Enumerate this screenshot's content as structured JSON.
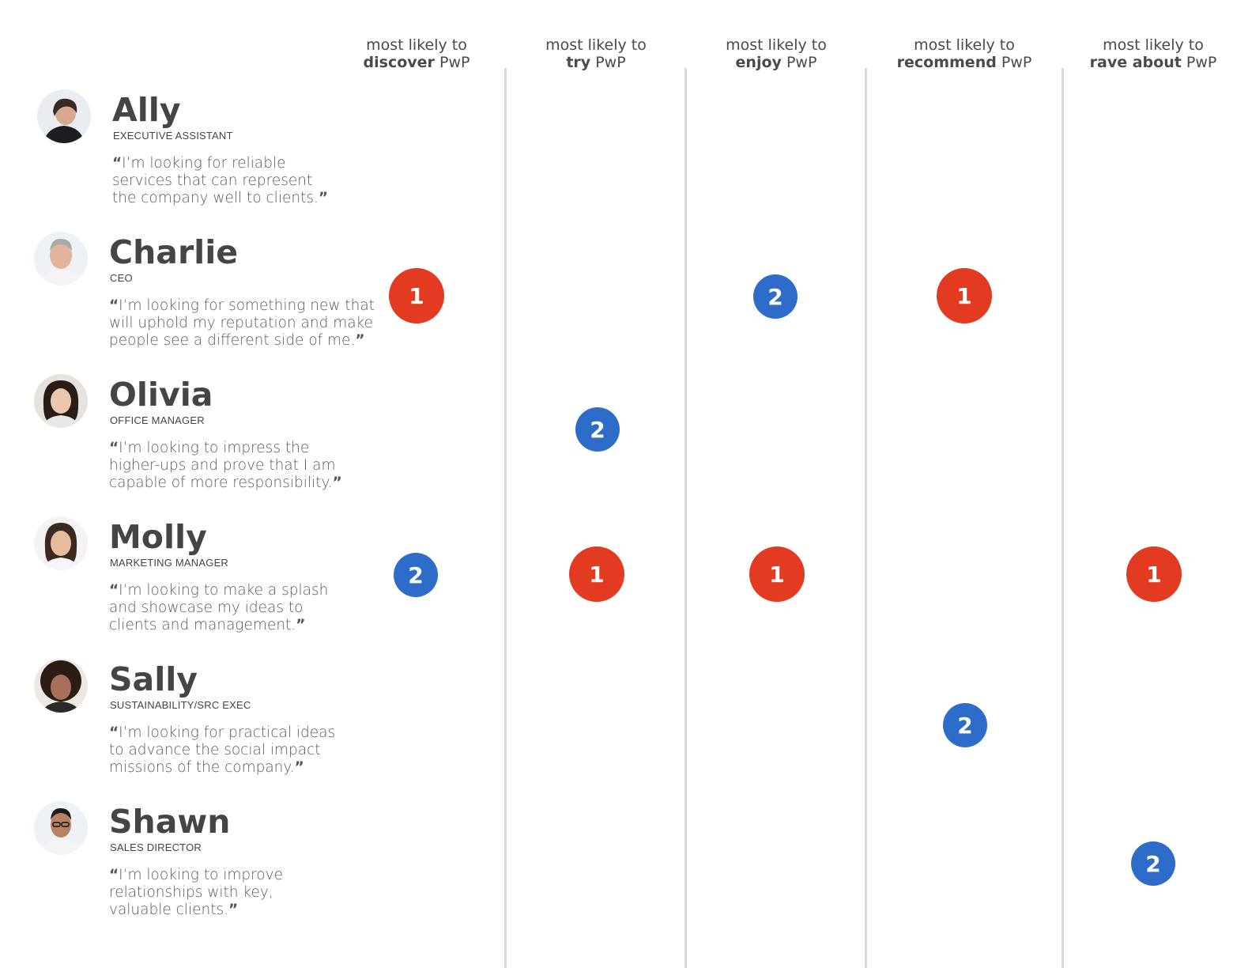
{
  "colors": {
    "rank_1": "#e33b22",
    "rank_2": "#2d6cc8",
    "divider": "#d9d9d9"
  },
  "columns": [
    {
      "prefix": "most likely to",
      "verb": "discover",
      "suffix": "PwP"
    },
    {
      "prefix": "most likely to",
      "verb": "try",
      "suffix": "PwP"
    },
    {
      "prefix": "most likely to",
      "verb": "enjoy",
      "suffix": "PwP"
    },
    {
      "prefix": "most likely to",
      "verb": "recommend",
      "suffix": "PwP"
    },
    {
      "prefix": "most likely to",
      "verb": "rave about",
      "suffix": "PwP"
    }
  ],
  "personas": [
    {
      "name": "Ally",
      "role": "EXECUTIVE ASSISTANT",
      "avatar_icon": "woman-portrait-icon",
      "quote_open": "“",
      "quote_close": "”",
      "quote_lines": [
        "I’m looking for reliable",
        "services that can represent",
        "the company well to clients."
      ]
    },
    {
      "name": "Charlie",
      "role": "CEO",
      "avatar_icon": "man-portrait-icon",
      "quote_open": "“",
      "quote_close": "”",
      "quote_lines": [
        "I’m looking for something new that",
        "will uphold my reputation and make",
        "people see a different side of me."
      ]
    },
    {
      "name": "Olivia",
      "role": "OFFICE MANAGER",
      "avatar_icon": "woman-portrait-icon",
      "quote_open": "“",
      "quote_close": "”",
      "quote_lines": [
        "I’m looking to impress the",
        "higher-ups and prove that I am",
        "capable of more responsibility."
      ]
    },
    {
      "name": "Molly",
      "role": "MARKETING MANAGER",
      "avatar_icon": "woman-portrait-icon",
      "quote_open": "“",
      "quote_close": "”",
      "quote_lines": [
        "I’m looking to make a splash",
        "and showcase my ideas to",
        "clients and management."
      ]
    },
    {
      "name": "Sally",
      "role": "SUSTAINABILITY/SRC EXEC",
      "avatar_icon": "woman-portrait-icon",
      "quote_open": "“",
      "quote_close": "”",
      "quote_lines": [
        "I’m looking for practical ideas",
        "to advance the social impact",
        "missions of the company."
      ]
    },
    {
      "name": "Shawn",
      "role": "SALES DIRECTOR",
      "avatar_icon": "man-portrait-icon",
      "quote_open": "“",
      "quote_close": "”",
      "quote_lines": [
        "I’m looking to improve",
        "relationships with key,",
        "valuable clients."
      ]
    }
  ],
  "markers": [
    {
      "persona": "Charlie",
      "column": "discover",
      "rank": "1"
    },
    {
      "persona": "Charlie",
      "column": "enjoy",
      "rank": "2"
    },
    {
      "persona": "Charlie",
      "column": "recommend",
      "rank": "1"
    },
    {
      "persona": "Olivia",
      "column": "try",
      "rank": "2"
    },
    {
      "persona": "Molly",
      "column": "discover",
      "rank": "2"
    },
    {
      "persona": "Molly",
      "column": "try",
      "rank": "1"
    },
    {
      "persona": "Molly",
      "column": "enjoy",
      "rank": "1"
    },
    {
      "persona": "Molly",
      "column": "rave about",
      "rank": "1"
    },
    {
      "persona": "Sally",
      "column": "recommend",
      "rank": "2"
    },
    {
      "persona": "Shawn",
      "column": "rave about",
      "rank": "2"
    }
  ]
}
